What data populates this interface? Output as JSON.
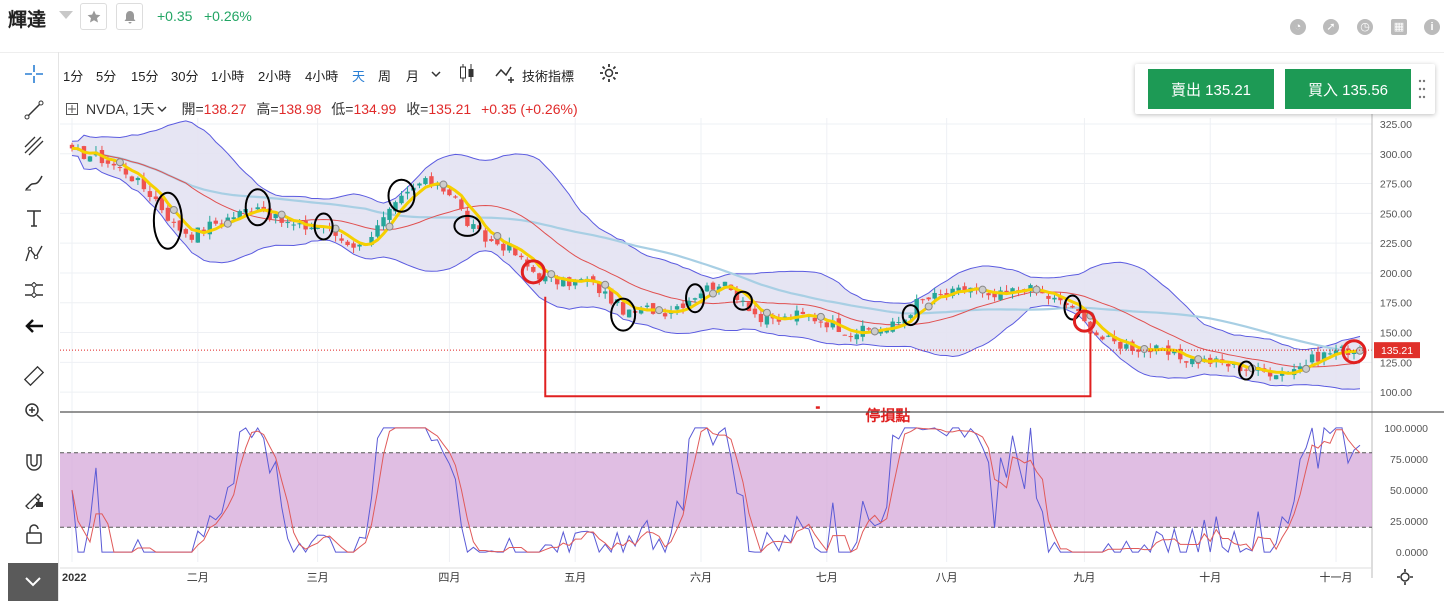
{
  "header": {
    "title": "輝達",
    "change": "+0.35",
    "change_pct": "+0.26%",
    "icons": [
      "pie-chart-icon",
      "compass-icon",
      "clock-icon",
      "calendar-icon",
      "info-icon"
    ]
  },
  "toolbar": {
    "timeframes": [
      "1分",
      "5分",
      "15分",
      "30分",
      "1小時",
      "2小時",
      "4小時",
      "天",
      "周",
      "月"
    ],
    "active_timeframe": "天",
    "indicators_label": "技術指標"
  },
  "legend": {
    "symbol": "NVDA, 1天",
    "open_label": "開=",
    "open": "138.27",
    "high_label": "高=",
    "high": "138.98",
    "low_label": "低=",
    "low": "134.99",
    "close_label": "收=",
    "close": "135.21",
    "change": "+0.35 (+0.26%)"
  },
  "trade": {
    "sell_label": "賣出 135.21",
    "buy_label": "買入 135.56"
  },
  "colors": {
    "up": "#26a69a",
    "down": "#ef5350",
    "band": "#5b5be0",
    "band_fill": "#e3e2f2",
    "ma": "#e05050",
    "slow_ma": "#a8cfe4",
    "fast_ma": "#f5d000",
    "stoch_k": "#5b5bd6",
    "stoch_d": "#e05a5a",
    "stoch_band": "#d6a8d9",
    "annotation": "#e02020",
    "accent": "#1d9a55"
  },
  "chart_data": {
    "type": "candlestick",
    "symbol": "NVDA",
    "interval": "1天",
    "last_price_label": "135.21",
    "ylim": [
      85,
      330
    ],
    "y_ticks": [
      100,
      125,
      150,
      175,
      200,
      225,
      250,
      275,
      300,
      325
    ],
    "y_tick_labels": [
      "100.00",
      "125.00",
      "150.00",
      "175.00",
      "200.00",
      "225.00",
      "250.00",
      "275.00",
      "300.00",
      "325.00"
    ],
    "x_ticks": [
      {
        "label": "2022",
        "day": 0
      },
      {
        "label": "二月",
        "day": 21
      },
      {
        "label": "三月",
        "day": 41
      },
      {
        "label": "四月",
        "day": 63
      },
      {
        "label": "五月",
        "day": 84
      },
      {
        "label": "六月",
        "day": 105
      },
      {
        "label": "七月",
        "day": 126
      },
      {
        "label": "八月",
        "day": 146
      },
      {
        "label": "九月",
        "day": 169
      },
      {
        "label": "十月",
        "day": 190
      },
      {
        "label": "十一月",
        "day": 211
      }
    ],
    "days": 216,
    "close_anchors": [
      [
        0,
        301
      ],
      [
        4,
        298
      ],
      [
        9,
        285
      ],
      [
        14,
        262
      ],
      [
        17,
        240
      ],
      [
        20,
        232
      ],
      [
        23,
        240
      ],
      [
        28,
        250
      ],
      [
        31,
        258
      ],
      [
        34,
        245
      ],
      [
        38,
        238
      ],
      [
        42,
        240
      ],
      [
        45,
        228
      ],
      [
        48,
        222
      ],
      [
        51,
        238
      ],
      [
        55,
        262
      ],
      [
        58,
        275
      ],
      [
        61,
        276
      ],
      [
        64,
        262
      ],
      [
        66,
        242
      ],
      [
        69,
        228
      ],
      [
        71,
        225
      ],
      [
        73,
        221
      ],
      [
        76,
        205
      ],
      [
        79,
        195
      ],
      [
        82,
        192
      ],
      [
        86,
        194
      ],
      [
        89,
        182
      ],
      [
        93,
        165
      ],
      [
        96,
        170
      ],
      [
        99,
        168
      ],
      [
        102,
        175
      ],
      [
        105,
        185
      ],
      [
        108,
        192
      ],
      [
        112,
        178
      ],
      [
        115,
        160
      ],
      [
        118,
        160
      ],
      [
        121,
        165
      ],
      [
        124,
        162
      ],
      [
        127,
        157
      ],
      [
        130,
        150
      ],
      [
        133,
        152
      ],
      [
        136,
        153
      ],
      [
        139,
        162
      ],
      [
        141,
        175
      ],
      [
        144,
        180
      ],
      [
        147,
        183
      ],
      [
        150,
        188
      ],
      [
        153,
        178
      ],
      [
        156,
        183
      ],
      [
        159,
        188
      ],
      [
        162,
        182
      ],
      [
        165,
        175
      ],
      [
        167,
        172
      ],
      [
        169,
        158
      ],
      [
        172,
        145
      ],
      [
        175,
        140
      ],
      [
        178,
        137
      ],
      [
        181,
        135
      ],
      [
        184,
        130
      ],
      [
        187,
        127
      ],
      [
        190,
        126
      ],
      [
        193,
        123
      ],
      [
        196,
        120
      ],
      [
        199,
        117
      ],
      [
        202,
        118
      ],
      [
        205,
        122
      ],
      [
        208,
        130
      ],
      [
        211,
        135
      ],
      [
        214,
        135.21
      ]
    ],
    "stochastic": {
      "ylim": [
        -8,
        108
      ],
      "y_ticks": [
        0,
        25,
        50,
        75,
        100
      ],
      "y_tick_labels": [
        "0.0000",
        "25.0000",
        "50.0000",
        "75.0000",
        "100.0000"
      ],
      "band": [
        20,
        80
      ]
    },
    "annotations": [
      {
        "type": "stop_loss_bracket",
        "label": "停損點",
        "from_day": 79,
        "to_day": 170
      }
    ]
  }
}
